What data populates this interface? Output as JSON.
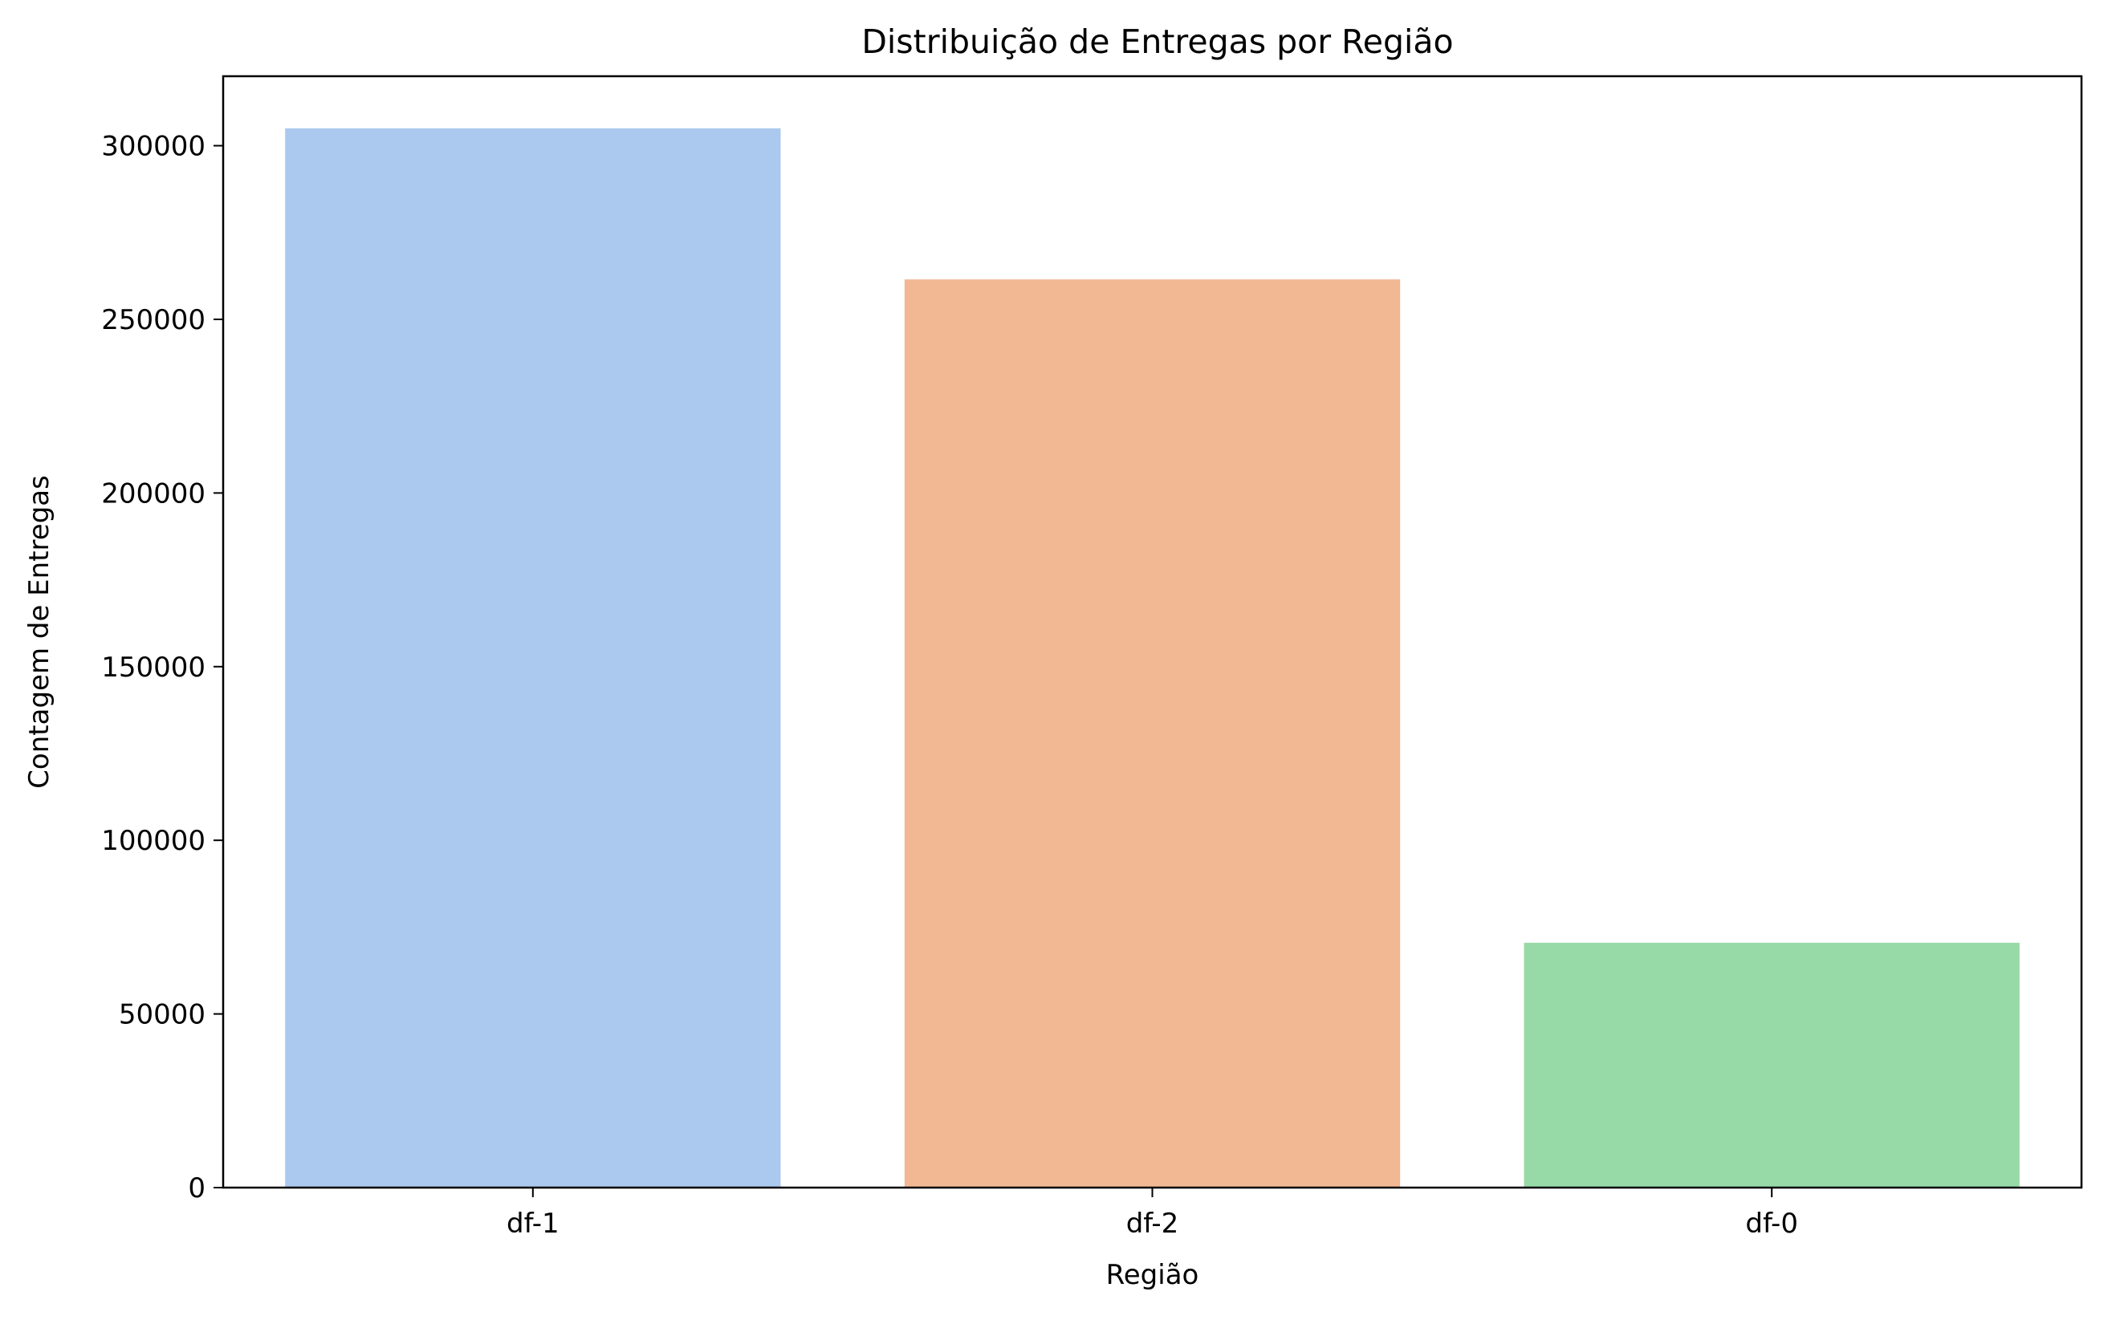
{
  "chart_data": {
    "type": "bar",
    "title": "Distribuição de Entregas por Região",
    "xlabel": "Região",
    "ylabel": "Contagem de Entregas",
    "categories": [
      "df-1",
      "df-2",
      "df-0"
    ],
    "values": [
      305000,
      261500,
      70500
    ],
    "colors": [
      "#abc9ee",
      "#f2b793",
      "#98d9a8"
    ],
    "ylim": [
      0,
      320000
    ],
    "yticks": [
      0,
      50000,
      100000,
      150000,
      200000,
      250000,
      300000
    ],
    "grid": false,
    "legend": "none"
  }
}
